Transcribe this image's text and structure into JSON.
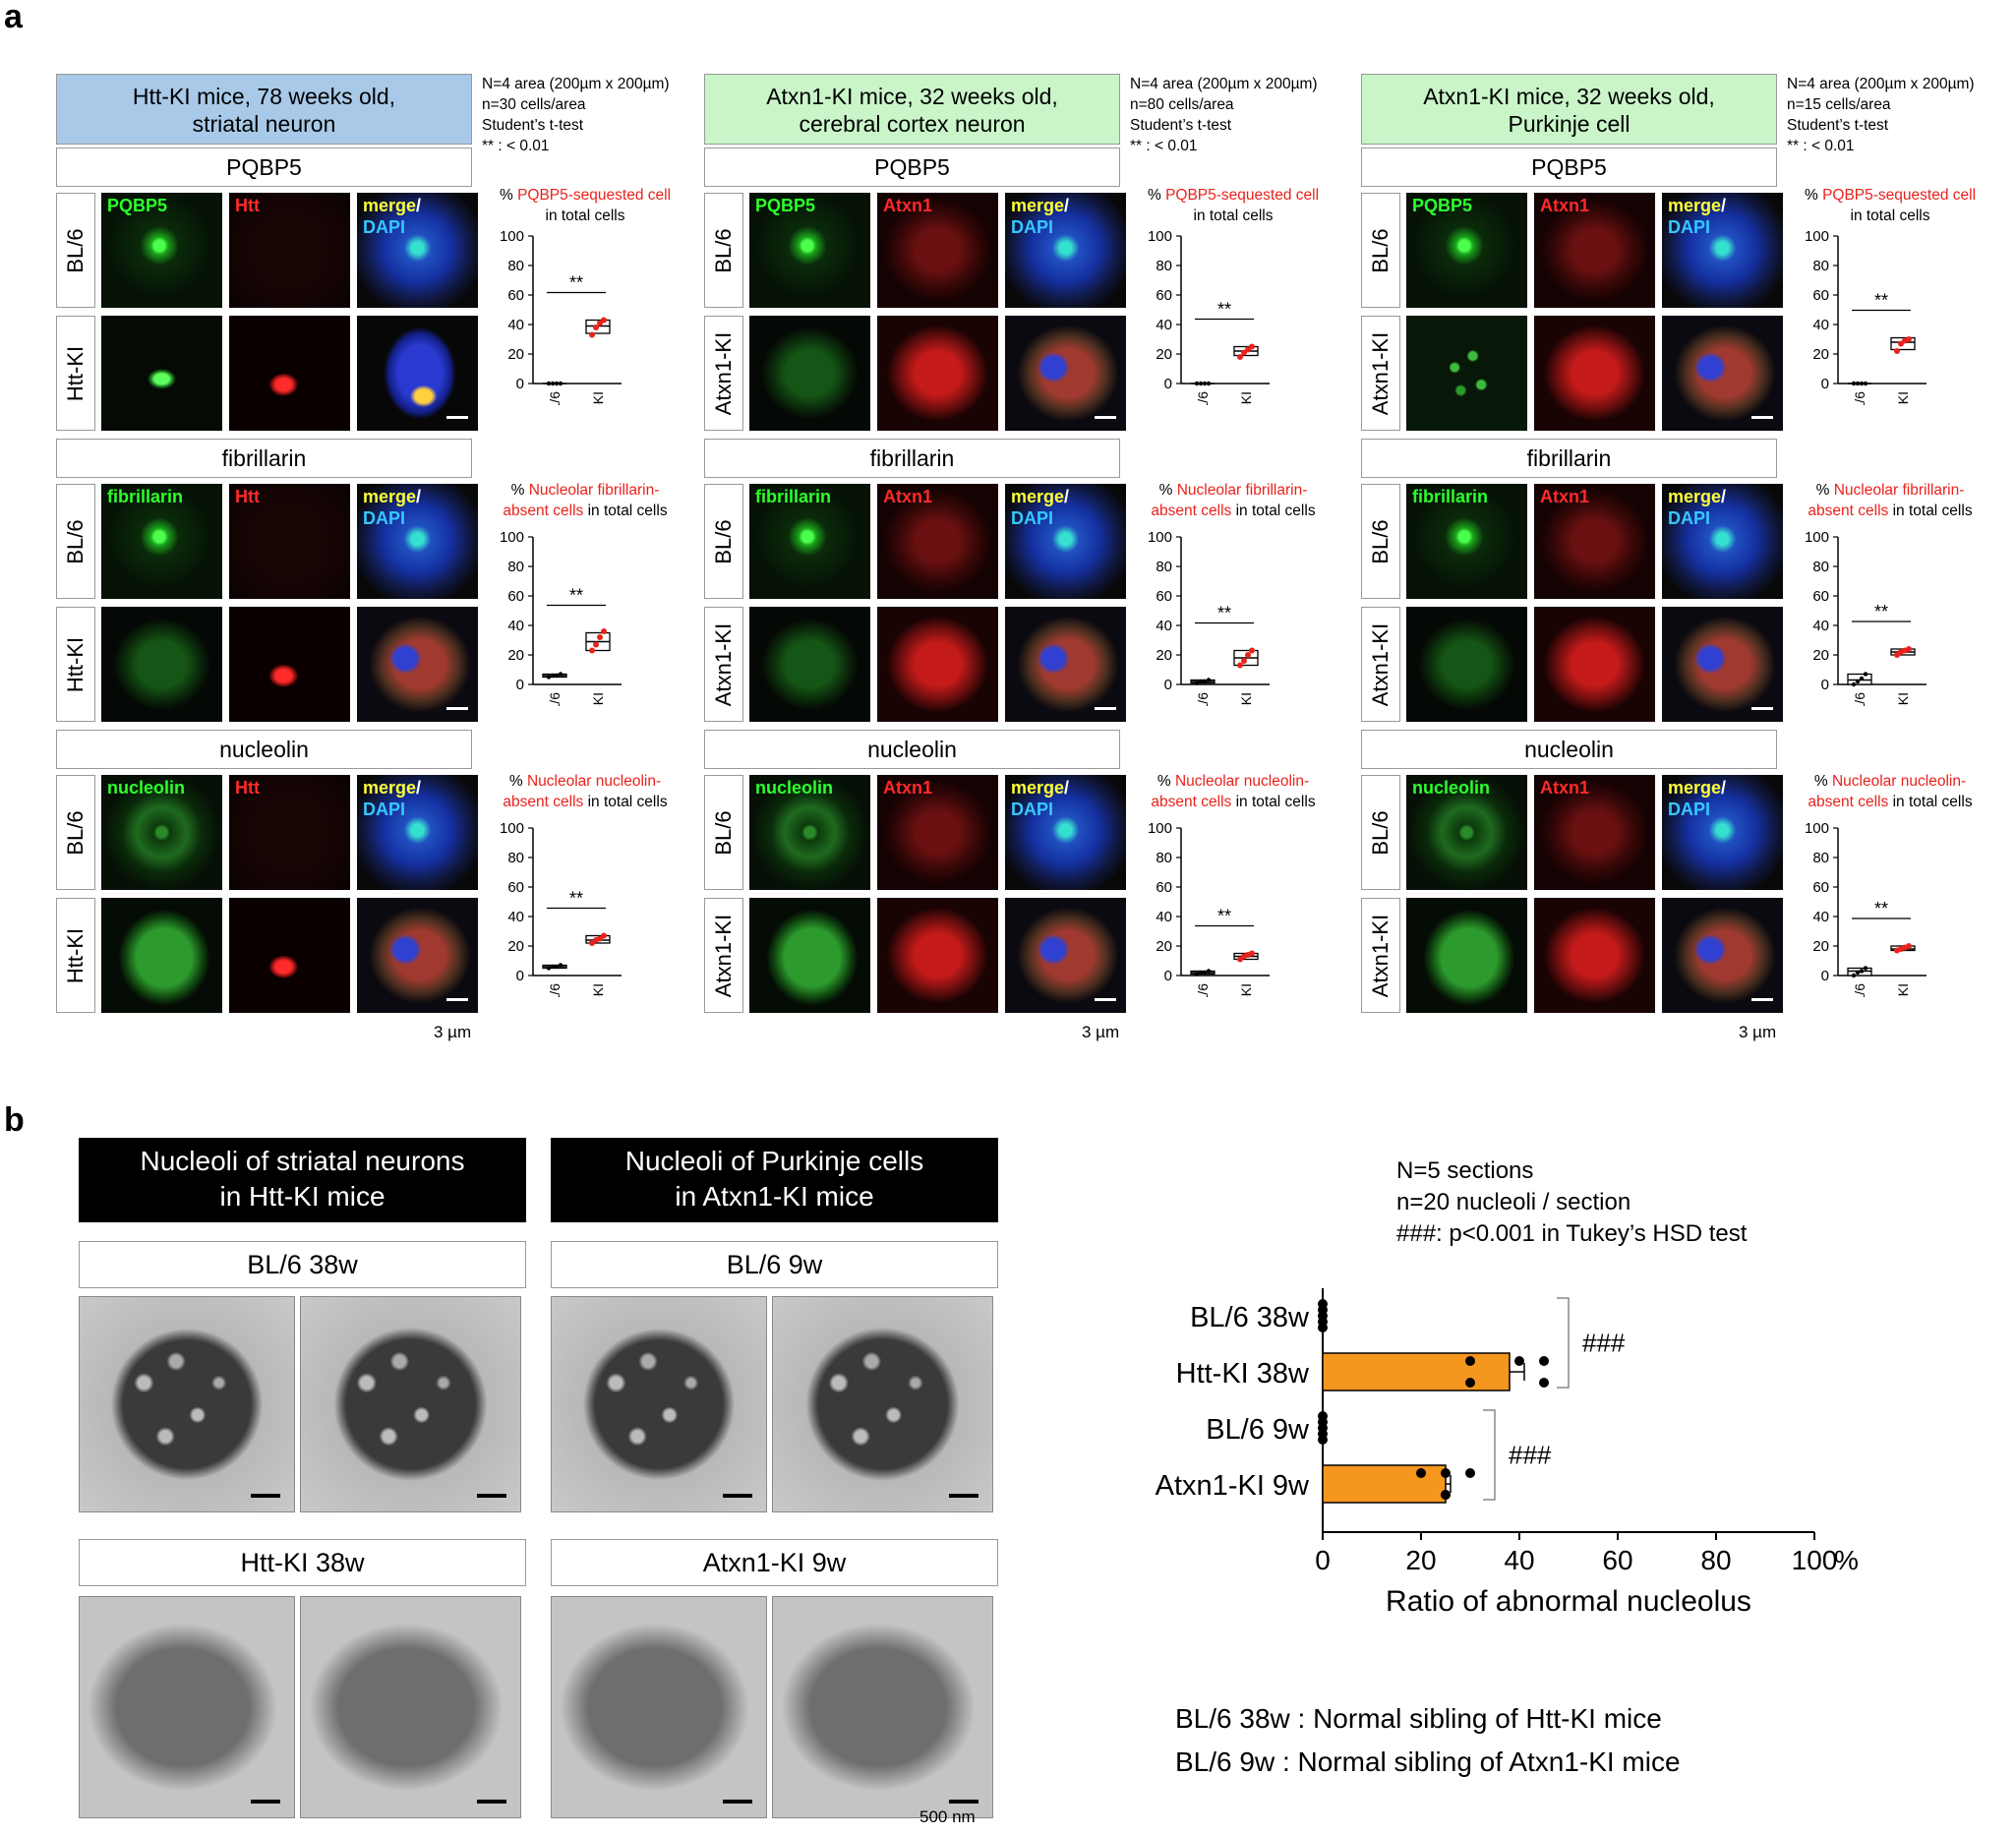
{
  "panel_a": {
    "letter": "a",
    "groups": [
      {
        "header_line1": "Htt-KI mice, 78 weeks old,",
        "header_line2": "striatal neuron",
        "header_color": "#a8c9e8",
        "notes": [
          "N=4 area (200µm x 200µm)",
          "n=30 cells/area",
          "Student’s t-test",
          "** : < 0.01"
        ],
        "red_channel": "Htt",
        "ki_label": "Htt-KI",
        "scale_text": "3 µm",
        "rows": [
          {
            "marker": "PQBP5",
            "green_label": "PQBP5",
            "plot_title_red": "PQBP5-sequested cell",
            "plot_title_pre": "% ",
            "plot_title_line2": "in total cells",
            "sig": "**",
            "bl": [
              0,
              0,
              0,
              0
            ],
            "ki": [
              33,
              38,
              41,
              43
            ],
            "bl_box": [
              0,
              0,
              0
            ],
            "ki_box": [
              34,
              39,
              43
            ]
          },
          {
            "marker": "fibrillarin",
            "green_label": "fibrillarin",
            "plot_title_pre": "% ",
            "plot_title_red": "Nucleolar fibrillarin-",
            "plot_title_line2_red": "absent cells",
            "plot_title_line2": " in total cells",
            "sig": "**",
            "bl": [
              5,
              6,
              6,
              7
            ],
            "ki": [
              23,
              27,
              32,
              36
            ],
            "bl_box": [
              5,
              6,
              7
            ],
            "ki_box": [
              23,
              29,
              35
            ]
          },
          {
            "marker": "nucleolin",
            "green_label": "nucleolin",
            "plot_title_pre": "% ",
            "plot_title_red": "Nucleolar nucleolin-",
            "plot_title_line2_red": "absent cells",
            "plot_title_line2": " in total cells",
            "sig": "**",
            "bl": [
              5,
              6,
              6,
              7
            ],
            "ki": [
              22,
              24,
              25,
              27
            ],
            "bl_box": [
              5,
              6,
              7
            ],
            "ki_box": [
              22,
              24,
              27
            ]
          }
        ]
      },
      {
        "header_line1": "Atxn1-KI mice, 32 weeks old,",
        "header_line2": "cerebral cortex neuron",
        "header_color": "#c9f5c9",
        "notes": [
          "N=4 area (200µm x 200µm)",
          "n=80 cells/area",
          "Student’s t-test",
          "** : < 0.01"
        ],
        "red_channel": "Atxn1",
        "ki_label": "Atxn1-KI",
        "scale_text": "3 µm",
        "rows": [
          {
            "marker": "PQBP5",
            "green_label": "PQBP5",
            "plot_title_pre": "% ",
            "plot_title_red": "PQBP5-sequested cell",
            "plot_title_line2": "in total cells",
            "sig": "**",
            "bl": [
              0,
              0,
              0,
              0
            ],
            "ki": [
              18,
              21,
              23,
              25
            ],
            "bl_box": [
              0,
              0,
              0
            ],
            "ki_box": [
              19,
              22,
              25
            ]
          },
          {
            "marker": "fibrillarin",
            "green_label": "fibrillarin",
            "plot_title_pre": "% ",
            "plot_title_red": "Nucleolar fibrillarin-",
            "plot_title_line2_red": "absent cells",
            "plot_title_line2": " in total cells",
            "sig": "**",
            "bl": [
              1,
              2,
              2,
              3
            ],
            "ki": [
              13,
              16,
              20,
              23
            ],
            "bl_box": [
              1,
              2,
              3
            ],
            "ki_box": [
              13,
              18,
              23
            ]
          },
          {
            "marker": "nucleolin",
            "green_label": "nucleolin",
            "plot_title_pre": "% ",
            "plot_title_red": "Nucleolar nucleolin-",
            "plot_title_line2_red": "absent cells",
            "plot_title_line2": " in total cells",
            "sig": "**",
            "bl": [
              1,
              2,
              2,
              3
            ],
            "ki": [
              11,
              13,
              14,
              15
            ],
            "bl_box": [
              1,
              2,
              3
            ],
            "ki_box": [
              11,
              13,
              15
            ]
          }
        ]
      },
      {
        "header_line1": "Atxn1-KI mice, 32 weeks old,",
        "header_line2": "Purkinje cell",
        "header_color": "#c9f5c9",
        "notes": [
          "N=4 area (200µm x 200µm)",
          "n=15 cells/area",
          "Student’s t-test",
          "** : < 0.01"
        ],
        "red_channel": "Atxn1",
        "ki_label": "Atxn1-KI",
        "scale_text": "3 µm",
        "rows": [
          {
            "marker": "PQBP5",
            "green_label": "PQBP5",
            "plot_title_pre": "% ",
            "plot_title_red": "PQBP5-sequested cell",
            "plot_title_line2": "in total cells",
            "sig": "**",
            "bl": [
              0,
              0,
              0,
              0
            ],
            "ki": [
              22,
              27,
              29,
              30
            ],
            "bl_box": [
              0,
              0,
              0
            ],
            "ki_box": [
              23,
              28,
              31
            ]
          },
          {
            "marker": "fibrillarin",
            "green_label": "fibrillarin",
            "plot_title_pre": "% ",
            "plot_title_red": "Nucleolar fibrillarin-",
            "plot_title_line2_red": "absent cells",
            "plot_title_line2": " in total cells",
            "sig": "**",
            "bl": [
              0,
              2,
              4,
              7
            ],
            "ki": [
              20,
              22,
              23,
              24
            ],
            "bl_box": [
              0,
              3,
              7
            ],
            "ki_box": [
              20,
              22,
              24
            ]
          },
          {
            "marker": "nucleolin",
            "green_label": "nucleolin",
            "plot_title_pre": "% ",
            "plot_title_red": "Nucleolar nucleolin-",
            "plot_title_line2_red": "absent cells",
            "plot_title_line2": " in total cells",
            "sig": "**",
            "bl": [
              0,
              2,
              3,
              5
            ],
            "ki": [
              17,
              18,
              19,
              20
            ],
            "bl_box": [
              0,
              3,
              5
            ],
            "ki_box": [
              17,
              18,
              20
            ]
          }
        ]
      }
    ],
    "bl_label": "BL/6",
    "merge_label": "merge",
    "merge_slash": "/",
    "dapi_label": "DAPI",
    "yticks": [
      "0",
      "20",
      "40",
      "60",
      "80",
      "100"
    ]
  },
  "panel_b": {
    "letter": "b",
    "groups": [
      {
        "header_line1": "Nucleoli of striatal neurons",
        "header_line2": "in Htt-KI mice",
        "top_label": "BL/6 38w",
        "bottom_label": "Htt-KI 38w"
      },
      {
        "header_line1": "Nucleoli of Purkinje cells",
        "header_line2": "in Atxn1-KI mice",
        "top_label": "BL/6 9w",
        "bottom_label": "Atxn1-KI 9w"
      }
    ],
    "scale_text": "500 nm",
    "notes": [
      "N=5 sections",
      "n=20 nucleoli / section",
      "###: p<0.001 in Tukey’s HSD test"
    ],
    "legend": [
      "BL/6 38w :  Normal sibling of Htt-KI mice",
      "BL/6 9w : Normal sibling of Atxn1-KI mice"
    ]
  },
  "chart_data": {
    "type": "bar",
    "orientation": "horizontal",
    "categories": [
      "BL/6 38w",
      "Htt-KI 38w",
      "BL/6 9w",
      "Atxn1-KI 9w"
    ],
    "values": [
      0,
      38,
      0,
      25
    ],
    "errors": [
      0,
      3,
      0,
      1
    ],
    "points": [
      [
        0,
        0,
        0,
        0,
        0
      ],
      [
        30,
        30,
        40,
        45,
        45
      ],
      [
        0,
        0,
        0,
        0,
        0
      ],
      [
        20,
        25,
        25,
        25,
        30
      ]
    ],
    "bar_color": "#f5961e",
    "xlabel": "Ratio of abnormal nucleolus",
    "xunit": "%",
    "xlim": [
      0,
      100
    ],
    "xticks": [
      "0",
      "20",
      "40",
      "60",
      "80",
      "100"
    ],
    "significance": [
      {
        "between": [
          "BL/6 38w",
          "Htt-KI 38w"
        ],
        "label": "###"
      },
      {
        "between": [
          "BL/6 9w",
          "Atxn1-KI 9w"
        ],
        "label": "###"
      }
    ]
  }
}
